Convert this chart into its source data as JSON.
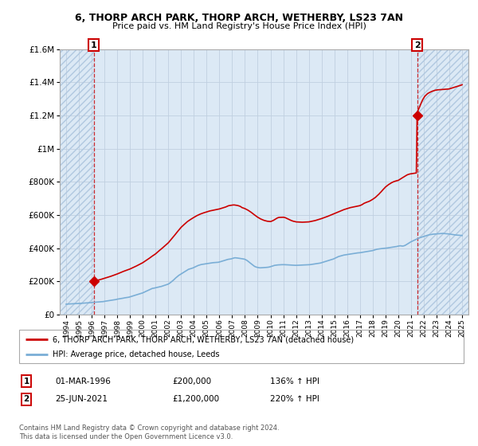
{
  "title1": "6, THORP ARCH PARK, THORP ARCH, WETHERBY, LS23 7AN",
  "title2": "Price paid vs. HM Land Registry's House Price Index (HPI)",
  "legend_line1": "6, THORP ARCH PARK, THORP ARCH, WETHERBY, LS23 7AN (detached house)",
  "legend_line2": "HPI: Average price, detached house, Leeds",
  "footnote": "Contains HM Land Registry data © Crown copyright and database right 2024.\nThis data is licensed under the Open Government Licence v3.0.",
  "annotation1_date": "01-MAR-1996",
  "annotation1_price": "£200,000",
  "annotation1_hpi": "136% ↑ HPI",
  "annotation2_date": "25-JUN-2021",
  "annotation2_price": "£1,200,000",
  "annotation2_hpi": "220% ↑ HPI",
  "sale1_x": 1996.17,
  "sale1_y": 200000,
  "sale2_x": 2021.48,
  "sale2_y": 1200000,
  "hpi_color": "#7aaed6",
  "price_color": "#cc0000",
  "ylim": [
    0,
    1600000
  ],
  "xlim": [
    1993.5,
    2025.5
  ],
  "yticks": [
    0,
    200000,
    400000,
    600000,
    800000,
    1000000,
    1200000,
    1400000,
    1600000
  ],
  "bg_blue": "#dce9f5",
  "hatch_color": "#b0c8e0",
  "hpi_data_x": [
    1994.0,
    1994.08,
    1994.17,
    1994.25,
    1994.33,
    1994.42,
    1994.5,
    1994.58,
    1994.67,
    1994.75,
    1994.83,
    1994.92,
    1995.0,
    1995.08,
    1995.17,
    1995.25,
    1995.33,
    1995.42,
    1995.5,
    1995.58,
    1995.67,
    1995.75,
    1995.83,
    1995.92,
    1996.0,
    1996.08,
    1996.17,
    1996.25,
    1996.33,
    1996.42,
    1996.5,
    1996.58,
    1996.67,
    1996.75,
    1996.83,
    1996.92,
    1997.0,
    1997.08,
    1997.17,
    1997.25,
    1997.33,
    1997.42,
    1997.5,
    1997.58,
    1997.67,
    1997.75,
    1997.83,
    1997.92,
    1998.0,
    1998.08,
    1998.17,
    1998.25,
    1998.33,
    1998.42,
    1998.5,
    1998.58,
    1998.67,
    1998.75,
    1998.83,
    1998.92,
    1999.0,
    1999.08,
    1999.17,
    1999.25,
    1999.33,
    1999.42,
    1999.5,
    1999.58,
    1999.67,
    1999.75,
    1999.83,
    1999.92,
    2000.0,
    2000.08,
    2000.17,
    2000.25,
    2000.33,
    2000.42,
    2000.5,
    2000.58,
    2000.67,
    2000.75,
    2000.83,
    2000.92,
    2001.0,
    2001.08,
    2001.17,
    2001.25,
    2001.33,
    2001.42,
    2001.5,
    2001.58,
    2001.67,
    2001.75,
    2001.83,
    2001.92,
    2002.0,
    2002.08,
    2002.17,
    2002.25,
    2002.33,
    2002.42,
    2002.5,
    2002.58,
    2002.67,
    2002.75,
    2002.83,
    2002.92,
    2003.0,
    2003.08,
    2003.17,
    2003.25,
    2003.33,
    2003.42,
    2003.5,
    2003.58,
    2003.67,
    2003.75,
    2003.83,
    2003.92,
    2004.0,
    2004.08,
    2004.17,
    2004.25,
    2004.33,
    2004.42,
    2004.5,
    2004.58,
    2004.67,
    2004.75,
    2004.83,
    2004.92,
    2005.0,
    2005.08,
    2005.17,
    2005.25,
    2005.33,
    2005.42,
    2005.5,
    2005.58,
    2005.67,
    2005.75,
    2005.83,
    2005.92,
    2006.0,
    2006.08,
    2006.17,
    2006.25,
    2006.33,
    2006.42,
    2006.5,
    2006.58,
    2006.67,
    2006.75,
    2006.83,
    2006.92,
    2007.0,
    2007.08,
    2007.17,
    2007.25,
    2007.33,
    2007.42,
    2007.5,
    2007.58,
    2007.67,
    2007.75,
    2007.83,
    2007.92,
    2008.0,
    2008.08,
    2008.17,
    2008.25,
    2008.33,
    2008.42,
    2008.5,
    2008.58,
    2008.67,
    2008.75,
    2008.83,
    2008.92,
    2009.0,
    2009.08,
    2009.17,
    2009.25,
    2009.33,
    2009.42,
    2009.5,
    2009.58,
    2009.67,
    2009.75,
    2009.83,
    2009.92,
    2010.0,
    2010.08,
    2010.17,
    2010.25,
    2010.33,
    2010.42,
    2010.5,
    2010.58,
    2010.67,
    2010.75,
    2010.83,
    2010.92,
    2011.0,
    2011.08,
    2011.17,
    2011.25,
    2011.33,
    2011.42,
    2011.5,
    2011.58,
    2011.67,
    2011.75,
    2011.83,
    2011.92,
    2012.0,
    2012.08,
    2012.17,
    2012.25,
    2012.33,
    2012.42,
    2012.5,
    2012.58,
    2012.67,
    2012.75,
    2012.83,
    2012.92,
    2013.0,
    2013.08,
    2013.17,
    2013.25,
    2013.33,
    2013.42,
    2013.5,
    2013.58,
    2013.67,
    2013.75,
    2013.83,
    2013.92,
    2014.0,
    2014.08,
    2014.17,
    2014.25,
    2014.33,
    2014.42,
    2014.5,
    2014.58,
    2014.67,
    2014.75,
    2014.83,
    2014.92,
    2015.0,
    2015.08,
    2015.17,
    2015.25,
    2015.33,
    2015.42,
    2015.5,
    2015.58,
    2015.67,
    2015.75,
    2015.83,
    2015.92,
    2016.0,
    2016.08,
    2016.17,
    2016.25,
    2016.33,
    2016.42,
    2016.5,
    2016.58,
    2016.67,
    2016.75,
    2016.83,
    2016.92,
    2017.0,
    2017.08,
    2017.17,
    2017.25,
    2017.33,
    2017.42,
    2017.5,
    2017.58,
    2017.67,
    2017.75,
    2017.83,
    2017.92,
    2018.0,
    2018.08,
    2018.17,
    2018.25,
    2018.33,
    2018.42,
    2018.5,
    2018.58,
    2018.67,
    2018.75,
    2018.83,
    2018.92,
    2019.0,
    2019.08,
    2019.17,
    2019.25,
    2019.33,
    2019.42,
    2019.5,
    2019.58,
    2019.67,
    2019.75,
    2019.83,
    2019.92,
    2020.0,
    2020.08,
    2020.17,
    2020.25,
    2020.33,
    2020.42,
    2020.5,
    2020.58,
    2020.67,
    2020.75,
    2020.83,
    2020.92,
    2021.0,
    2021.08,
    2021.17,
    2021.25,
    2021.33,
    2021.42,
    2021.5,
    2021.58,
    2021.67,
    2021.75,
    2021.83,
    2021.92,
    2022.0,
    2022.08,
    2022.17,
    2022.25,
    2022.33,
    2022.42,
    2022.5,
    2022.58,
    2022.67,
    2022.75,
    2022.83,
    2022.92,
    2023.0,
    2023.08,
    2023.17,
    2023.25,
    2023.33,
    2023.42,
    2023.5,
    2023.58,
    2023.67,
    2023.75,
    2023.83,
    2023.92,
    2024.0,
    2024.08,
    2024.17,
    2024.25,
    2024.33,
    2024.42,
    2024.5,
    2024.58,
    2024.67,
    2024.75,
    2024.83,
    2024.92,
    2025.0
  ],
  "hpi_data_y": [
    62000,
    62500,
    63000,
    63200,
    63500,
    64000,
    64200,
    64500,
    64800,
    65000,
    65200,
    65500,
    66000,
    66500,
    67000,
    67500,
    68000,
    68500,
    69000,
    69200,
    69800,
    70000,
    70500,
    71000,
    72000,
    72500,
    73000,
    73500,
    74000,
    74500,
    75000,
    75500,
    76000,
    76500,
    77000,
    77500,
    79000,
    80000,
    81000,
    82000,
    83000,
    84000,
    85000,
    86000,
    87000,
    88000,
    89000,
    90000,
    92000,
    93000,
    94000,
    95000,
    96000,
    97000,
    98500,
    100000,
    101000,
    102000,
    103000,
    104000,
    106000,
    108000,
    110000,
    112000,
    114000,
    116000,
    118000,
    120000,
    122000,
    124000,
    126000,
    128000,
    130000,
    133000,
    136000,
    139000,
    142000,
    145000,
    148000,
    151000,
    154000,
    157000,
    158000,
    159000,
    161000,
    162000,
    164000,
    165000,
    167000,
    168000,
    170000,
    172000,
    174000,
    176000,
    178000,
    180000,
    183000,
    187000,
    192000,
    197000,
    202000,
    208000,
    214000,
    220000,
    226000,
    232000,
    236000,
    240000,
    244000,
    248000,
    252000,
    256000,
    260000,
    264000,
    268000,
    272000,
    274000,
    276000,
    278000,
    280000,
    283000,
    286000,
    289000,
    292000,
    295000,
    297000,
    299000,
    301000,
    302000,
    303000,
    304000,
    305000,
    306000,
    307000,
    308000,
    309000,
    310000,
    311000,
    312000,
    312500,
    313000,
    313500,
    314000,
    314500,
    316000,
    318000,
    320000,
    322000,
    324000,
    326000,
    328000,
    330000,
    332000,
    333000,
    334000,
    335000,
    337000,
    339000,
    341000,
    341500,
    341000,
    340000,
    339000,
    338000,
    337000,
    336000,
    335000,
    334000,
    332000,
    329000,
    325000,
    320000,
    315000,
    310000,
    305000,
    300000,
    295000,
    290000,
    287000,
    285000,
    283000,
    282000,
    281000,
    281000,
    281500,
    282000,
    282500,
    283000,
    283500,
    284000,
    285000,
    286000,
    288000,
    290000,
    292000,
    294000,
    296000,
    297000,
    298000,
    298500,
    299000,
    299500,
    299800,
    300000,
    300200,
    300000,
    299800,
    299500,
    299000,
    298500,
    298000,
    297500,
    297000,
    296800,
    296500,
    296200,
    296000,
    296200,
    296500,
    296800,
    297000,
    297200,
    297500,
    297800,
    298000,
    298200,
    298500,
    298800,
    299000,
    300000,
    301000,
    302000,
    303000,
    304000,
    305000,
    306000,
    307000,
    308000,
    309000,
    310000,
    312000,
    314000,
    316000,
    318000,
    320000,
    322000,
    324000,
    326000,
    328000,
    330000,
    332000,
    334000,
    337000,
    340000,
    343000,
    346000,
    349000,
    351000,
    353000,
    355000,
    357000,
    358000,
    359000,
    360000,
    361000,
    362000,
    363000,
    364000,
    365000,
    366000,
    367000,
    368000,
    369000,
    370000,
    371000,
    371500,
    372000,
    373000,
    374000,
    375000,
    376000,
    377000,
    378000,
    379000,
    380000,
    381000,
    382000,
    383000,
    385000,
    387000,
    389000,
    391000,
    393000,
    394000,
    395000,
    396000,
    397000,
    397500,
    398000,
    398500,
    399000,
    400000,
    401000,
    402000,
    403000,
    404000,
    405000,
    406000,
    407000,
    408000,
    409000,
    410000,
    412000,
    413000,
    414000,
    413000,
    412000,
    413000,
    415000,
    418000,
    422000,
    426000,
    430000,
    434000,
    438000,
    441000,
    444000,
    447000,
    450000,
    453000,
    456000,
    459000,
    462000,
    464000,
    466000,
    468000,
    470000,
    472000,
    474000,
    476000,
    478000,
    480000,
    481000,
    482000,
    483000,
    484000,
    484500,
    485000,
    485500,
    486000,
    486500,
    487000,
    487500,
    488000,
    488500,
    488000,
    487500,
    487000,
    486500,
    486000,
    485000,
    484000,
    483000,
    482000,
    481000,
    480000,
    479000,
    478500,
    478000,
    477500,
    477000,
    476500,
    476000
  ],
  "price_data_x": [
    1996.17,
    1996.25,
    1996.5,
    1996.75,
    1997.0,
    1997.25,
    1997.5,
    1997.75,
    1998.0,
    1998.25,
    1998.5,
    1998.75,
    1999.0,
    1999.25,
    1999.5,
    1999.75,
    2000.0,
    2000.25,
    2000.5,
    2000.75,
    2001.0,
    2001.25,
    2001.5,
    2001.75,
    2002.0,
    2002.25,
    2002.5,
    2002.75,
    2003.0,
    2003.25,
    2003.5,
    2003.75,
    2004.0,
    2004.25,
    2004.5,
    2004.75,
    2005.0,
    2005.25,
    2005.5,
    2005.75,
    2006.0,
    2006.25,
    2006.5,
    2006.58,
    2006.67,
    2006.75,
    2006.83,
    2006.92,
    2007.0,
    2007.08,
    2007.17,
    2007.25,
    2007.33,
    2007.42,
    2007.5,
    2007.58,
    2007.67,
    2007.75,
    2008.0,
    2008.25,
    2008.5,
    2008.75,
    2009.0,
    2009.25,
    2009.5,
    2009.75,
    2010.0,
    2010.08,
    2010.17,
    2010.25,
    2010.33,
    2010.42,
    2010.5,
    2010.58,
    2010.67,
    2011.0,
    2011.08,
    2011.17,
    2011.25,
    2011.33,
    2011.42,
    2011.5,
    2011.58,
    2011.67,
    2011.75,
    2011.83,
    2011.92,
    2012.0,
    2012.25,
    2012.5,
    2012.75,
    2013.0,
    2013.25,
    2013.5,
    2013.75,
    2014.0,
    2014.25,
    2014.5,
    2014.75,
    2015.0,
    2015.25,
    2015.5,
    2015.75,
    2016.0,
    2016.25,
    2016.5,
    2016.75,
    2017.0,
    2017.08,
    2017.17,
    2017.25,
    2017.33,
    2017.42,
    2017.5,
    2017.58,
    2017.67,
    2017.75,
    2017.83,
    2017.92,
    2018.0,
    2018.08,
    2018.17,
    2018.25,
    2018.33,
    2018.42,
    2018.5,
    2018.58,
    2018.67,
    2018.75,
    2018.83,
    2018.92,
    2019.0,
    2019.08,
    2019.17,
    2019.25,
    2019.33,
    2019.42,
    2019.5,
    2019.58,
    2019.67,
    2019.75,
    2019.83,
    2019.92,
    2020.0,
    2020.08,
    2020.17,
    2020.25,
    2020.33,
    2020.42,
    2020.5,
    2020.58,
    2020.67,
    2020.75,
    2020.83,
    2020.92,
    2021.0,
    2021.08,
    2021.17,
    2021.25,
    2021.33,
    2021.42,
    2021.48,
    2021.5,
    2021.58,
    2021.67,
    2021.75,
    2021.83,
    2021.92,
    2022.0,
    2022.08,
    2022.17,
    2022.25,
    2022.33,
    2022.42,
    2022.5,
    2022.58,
    2022.67,
    2022.75,
    2022.83,
    2022.92,
    2023.0,
    2023.08,
    2023.17,
    2023.25,
    2023.33,
    2023.42,
    2023.5,
    2023.58,
    2023.67,
    2023.75,
    2023.83,
    2023.92,
    2024.0,
    2024.08,
    2024.17,
    2024.25,
    2024.33,
    2024.42,
    2024.5,
    2024.58,
    2024.67,
    2024.75,
    2024.83,
    2024.92,
    2025.0
  ],
  "price_data_y": [
    200000,
    202000,
    207000,
    212000,
    218000,
    224000,
    230000,
    237000,
    244000,
    252000,
    260000,
    267000,
    274000,
    283000,
    292000,
    302000,
    312000,
    325000,
    338000,
    352000,
    365000,
    382000,
    398000,
    415000,
    432000,
    455000,
    478000,
    502000,
    525000,
    543000,
    560000,
    573000,
    585000,
    596000,
    605000,
    612000,
    618000,
    624000,
    628000,
    632000,
    636000,
    642000,
    648000,
    651000,
    654000,
    656000,
    657000,
    658000,
    659000,
    660000,
    660000,
    659000,
    658000,
    657000,
    655000,
    653000,
    650000,
    645000,
    638000,
    628000,
    615000,
    600000,
    586000,
    575000,
    567000,
    562000,
    560000,
    562000,
    565000,
    568000,
    572000,
    576000,
    580000,
    583000,
    585000,
    586000,
    585000,
    583000,
    580000,
    577000,
    574000,
    571000,
    568000,
    565000,
    563000,
    561000,
    560000,
    558000,
    557000,
    556000,
    557000,
    558000,
    562000,
    566000,
    572000,
    578000,
    585000,
    592000,
    600000,
    608000,
    616000,
    624000,
    632000,
    638000,
    644000,
    648000,
    652000,
    656000,
    659000,
    662000,
    666000,
    670000,
    673000,
    676000,
    678000,
    680000,
    683000,
    686000,
    690000,
    694000,
    698000,
    703000,
    708000,
    714000,
    720000,
    726000,
    733000,
    740000,
    747000,
    754000,
    761000,
    768000,
    773000,
    778000,
    783000,
    787000,
    791000,
    795000,
    798000,
    801000,
    803000,
    805000,
    807000,
    808000,
    812000,
    816000,
    820000,
    824000,
    828000,
    832000,
    836000,
    840000,
    843000,
    845000,
    847000,
    848000,
    849000,
    850000,
    851000,
    852000,
    853000,
    1200000,
    1220000,
    1235000,
    1250000,
    1265000,
    1280000,
    1295000,
    1305000,
    1315000,
    1322000,
    1328000,
    1333000,
    1337000,
    1340000,
    1343000,
    1346000,
    1348000,
    1350000,
    1352000,
    1353000,
    1354000,
    1354500,
    1355000,
    1355500,
    1356000,
    1356500,
    1357000,
    1357500,
    1358000,
    1358500,
    1359000,
    1360000,
    1362000,
    1364000,
    1366000,
    1368000,
    1370000,
    1372000,
    1374000,
    1376000,
    1378000,
    1380000,
    1382000,
    1385000
  ]
}
